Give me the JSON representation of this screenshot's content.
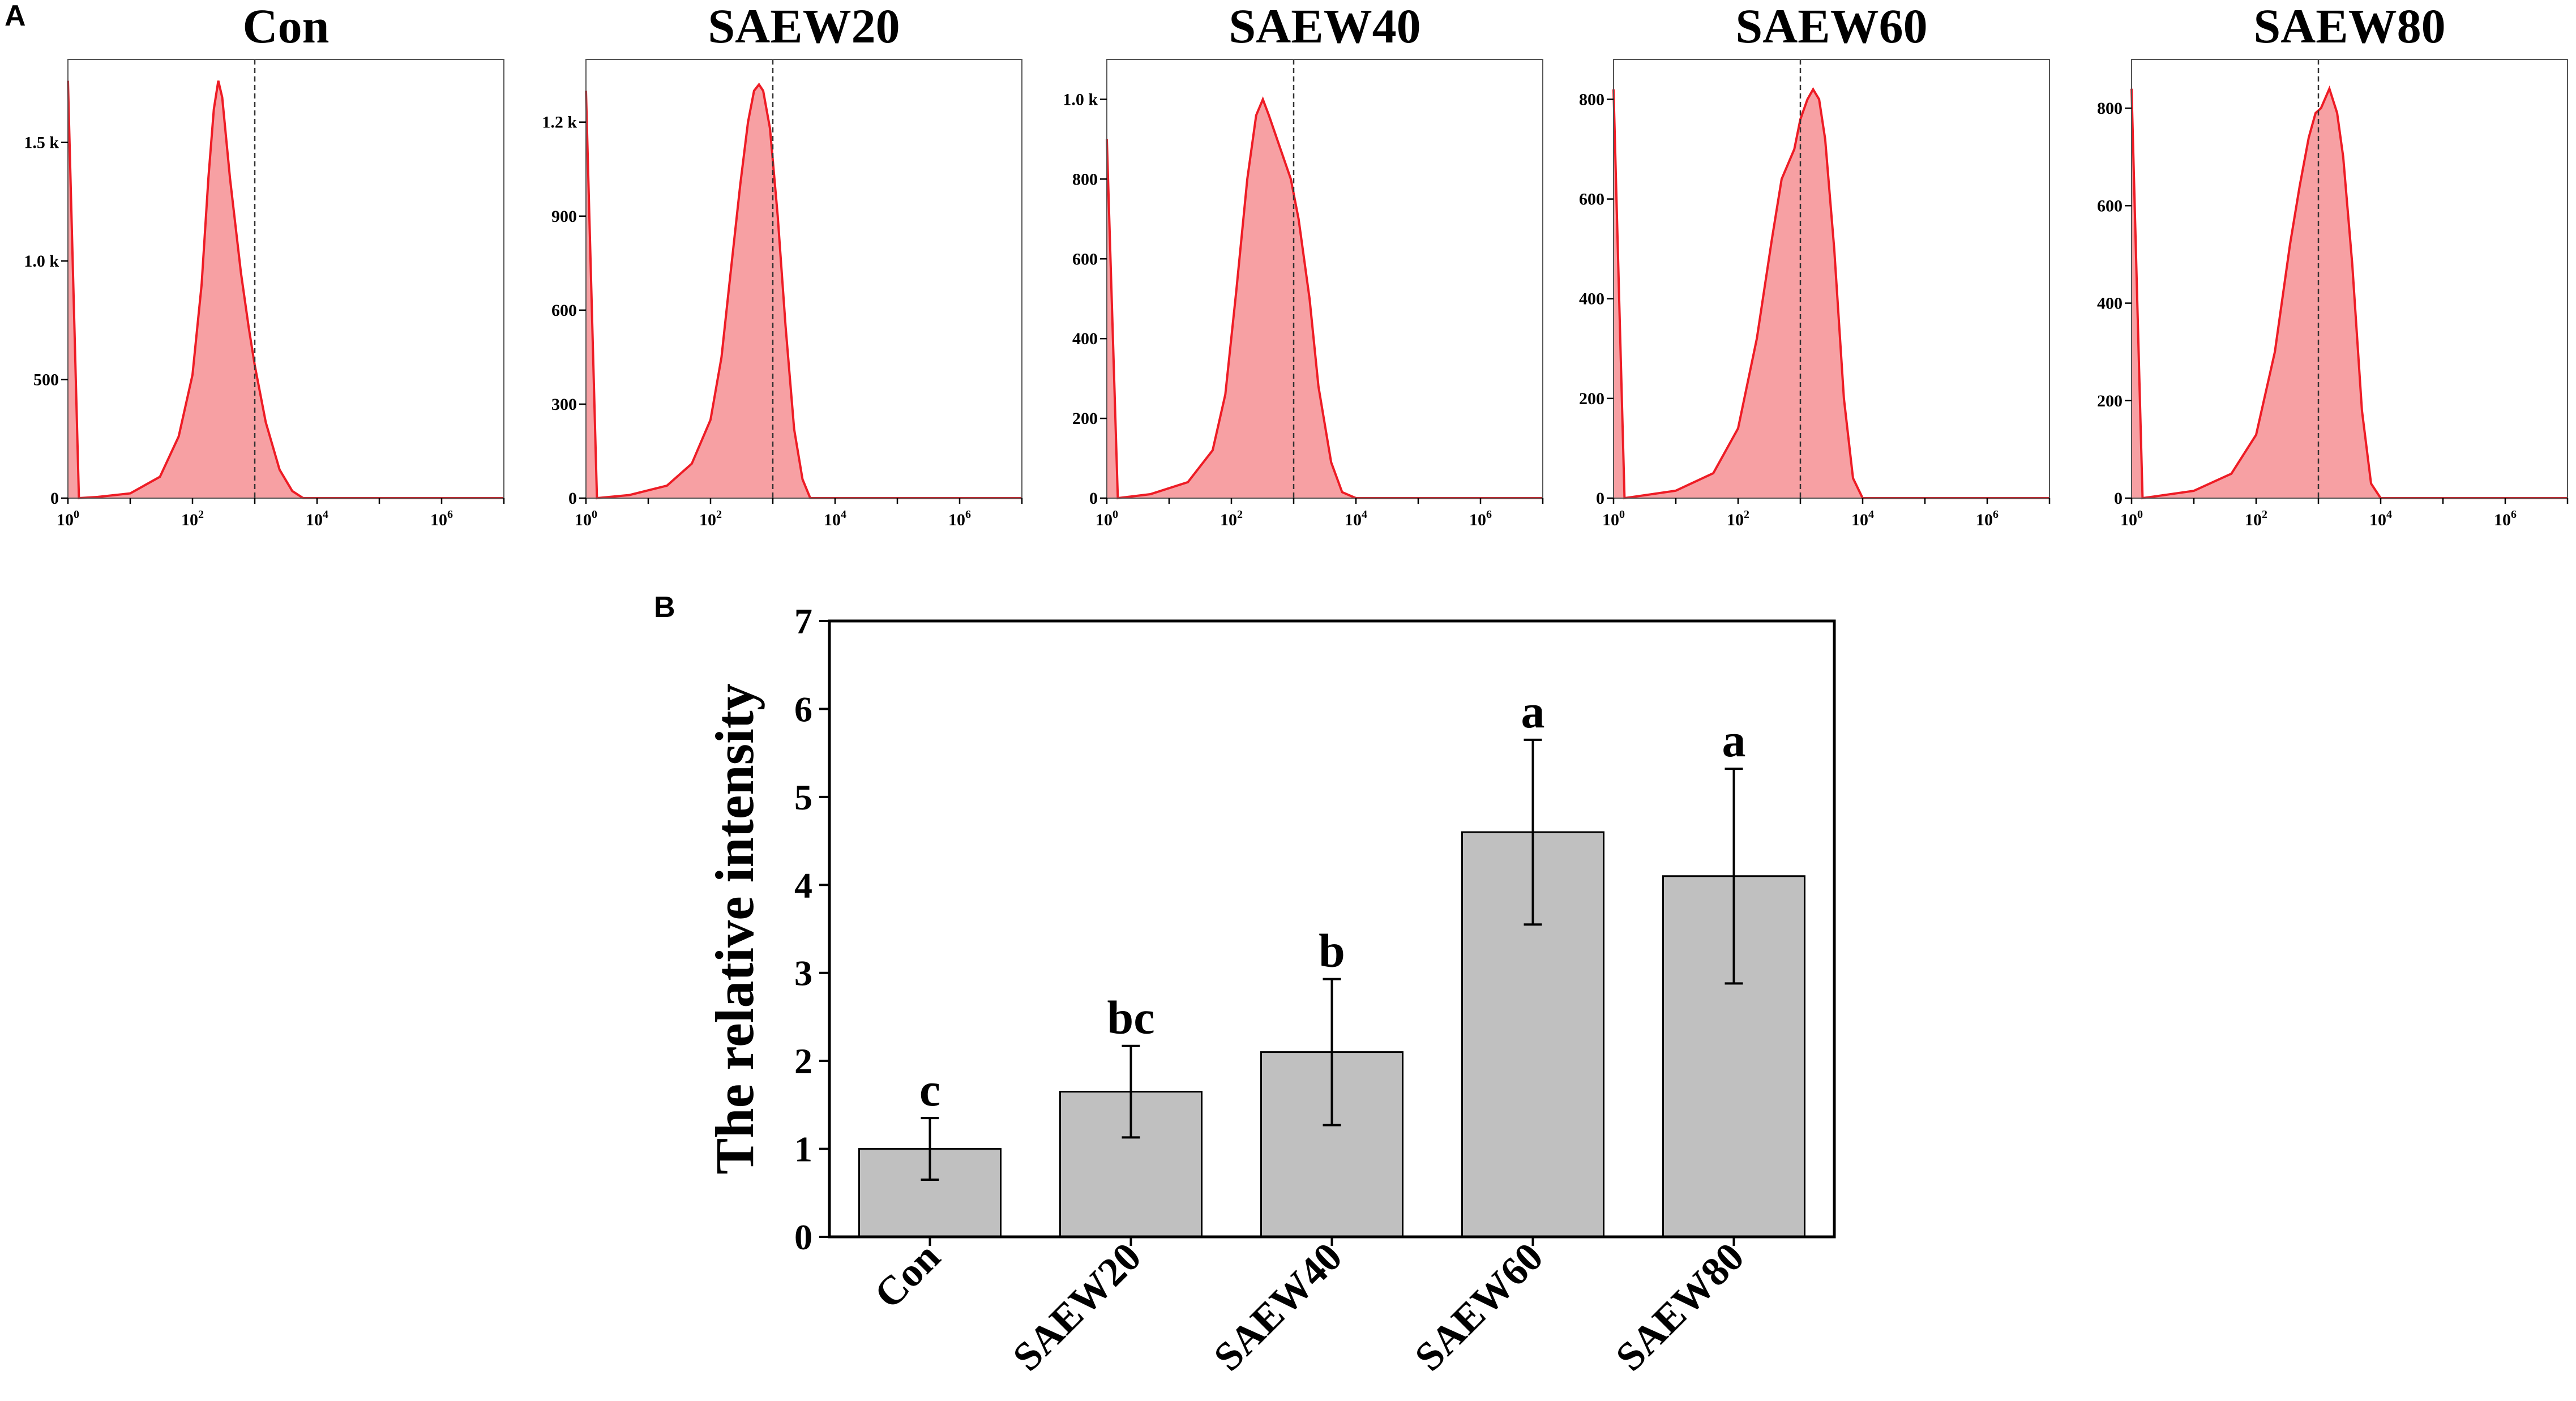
{
  "panels": {
    "a_label": "A",
    "b_label": "B"
  },
  "colors": {
    "histogram_fill": "#f7a0a3",
    "histogram_line": "#ee1c25",
    "bar_fill": "#c0c0c0",
    "axis": "#000000",
    "marker": "#333333"
  },
  "chart_data": [
    {
      "type": "area",
      "title": "Con",
      "x_scale": "log10",
      "xlim": [
        1,
        10000000
      ],
      "x_ticks": [
        {
          "base": "10",
          "exp": "0"
        },
        {
          "base": "10",
          "exp": "2"
        },
        {
          "base": "10",
          "exp": "4"
        },
        {
          "base": "10",
          "exp": "6"
        }
      ],
      "ylim": [
        0,
        1850
      ],
      "y_ticks": [
        {
          "v": 0,
          "label": "0"
        },
        {
          "v": 500,
          "label": "500"
        },
        {
          "v": 1000,
          "label": "1.0 k"
        },
        {
          "v": 1500,
          "label": "1.5 k"
        }
      ],
      "marker_x": 1000,
      "curve": [
        [
          1,
          1760
        ],
        [
          1.5,
          0
        ],
        [
          3,
          5
        ],
        [
          10,
          20
        ],
        [
          30,
          90
        ],
        [
          60,
          260
        ],
        [
          100,
          520
        ],
        [
          140,
          900
        ],
        [
          180,
          1350
        ],
        [
          220,
          1640
        ],
        [
          260,
          1760
        ],
        [
          300,
          1690
        ],
        [
          400,
          1350
        ],
        [
          600,
          950
        ],
        [
          800,
          720
        ],
        [
          1000,
          560
        ],
        [
          1500,
          320
        ],
        [
          2500,
          120
        ],
        [
          4000,
          30
        ],
        [
          6000,
          0
        ],
        [
          10000000,
          0
        ]
      ]
    },
    {
      "type": "area",
      "title": "SAEW20",
      "x_scale": "log10",
      "xlim": [
        1,
        10000000
      ],
      "x_ticks": [
        {
          "base": "10",
          "exp": "0"
        },
        {
          "base": "10",
          "exp": "2"
        },
        {
          "base": "10",
          "exp": "4"
        },
        {
          "base": "10",
          "exp": "6"
        }
      ],
      "ylim": [
        0,
        1400
      ],
      "y_ticks": [
        {
          "v": 0,
          "label": "0"
        },
        {
          "v": 300,
          "label": "300"
        },
        {
          "v": 600,
          "label": "600"
        },
        {
          "v": 900,
          "label": "900"
        },
        {
          "v": 1200,
          "label": "1.2 k"
        }
      ],
      "marker_x": 1000,
      "curve": [
        [
          1,
          1300
        ],
        [
          1.5,
          0
        ],
        [
          5,
          10
        ],
        [
          20,
          40
        ],
        [
          50,
          110
        ],
        [
          100,
          250
        ],
        [
          150,
          450
        ],
        [
          200,
          680
        ],
        [
          300,
          1000
        ],
        [
          400,
          1200
        ],
        [
          500,
          1300
        ],
        [
          600,
          1320
        ],
        [
          700,
          1300
        ],
        [
          900,
          1180
        ],
        [
          1200,
          900
        ],
        [
          1600,
          550
        ],
        [
          2200,
          220
        ],
        [
          3000,
          60
        ],
        [
          4000,
          0
        ],
        [
          10000000,
          0
        ]
      ]
    },
    {
      "type": "area",
      "title": "SAEW40",
      "x_scale": "log10",
      "xlim": [
        1,
        10000000
      ],
      "x_ticks": [
        {
          "base": "10",
          "exp": "0"
        },
        {
          "base": "10",
          "exp": "2"
        },
        {
          "base": "10",
          "exp": "4"
        },
        {
          "base": "10",
          "exp": "6"
        }
      ],
      "ylim": [
        0,
        1100
      ],
      "y_ticks": [
        {
          "v": 0,
          "label": "0"
        },
        {
          "v": 200,
          "label": "200"
        },
        {
          "v": 400,
          "label": "400"
        },
        {
          "v": 600,
          "label": "600"
        },
        {
          "v": 800,
          "label": "800"
        },
        {
          "v": 1000,
          "label": "1.0 k"
        }
      ],
      "marker_x": 1000,
      "curve": [
        [
          1,
          900
        ],
        [
          1.5,
          0
        ],
        [
          5,
          10
        ],
        [
          20,
          40
        ],
        [
          50,
          120
        ],
        [
          80,
          260
        ],
        [
          120,
          520
        ],
        [
          180,
          800
        ],
        [
          250,
          960
        ],
        [
          320,
          1000
        ],
        [
          400,
          960
        ],
        [
          600,
          880
        ],
        [
          900,
          800
        ],
        [
          1200,
          700
        ],
        [
          1800,
          500
        ],
        [
          2500,
          280
        ],
        [
          4000,
          90
        ],
        [
          6000,
          15
        ],
        [
          10000,
          0
        ],
        [
          10000000,
          0
        ]
      ]
    },
    {
      "type": "area",
      "title": "SAEW60",
      "x_scale": "log10",
      "xlim": [
        1,
        10000000
      ],
      "x_ticks": [
        {
          "base": "10",
          "exp": "0"
        },
        {
          "base": "10",
          "exp": "2"
        },
        {
          "base": "10",
          "exp": "4"
        },
        {
          "base": "10",
          "exp": "6"
        }
      ],
      "ylim": [
        0,
        880
      ],
      "y_ticks": [
        {
          "v": 0,
          "label": "0"
        },
        {
          "v": 200,
          "label": "200"
        },
        {
          "v": 400,
          "label": "400"
        },
        {
          "v": 600,
          "label": "600"
        },
        {
          "v": 800,
          "label": "800"
        }
      ],
      "marker_x": 1000,
      "curve": [
        [
          1,
          820
        ],
        [
          1.5,
          0
        ],
        [
          10,
          15
        ],
        [
          40,
          50
        ],
        [
          100,
          140
        ],
        [
          200,
          320
        ],
        [
          350,
          520
        ],
        [
          500,
          640
        ],
        [
          800,
          700
        ],
        [
          1000,
          760
        ],
        [
          1300,
          800
        ],
        [
          1600,
          820
        ],
        [
          2000,
          800
        ],
        [
          2500,
          720
        ],
        [
          3500,
          500
        ],
        [
          5000,
          200
        ],
        [
          7000,
          40
        ],
        [
          10000,
          0
        ],
        [
          10000000,
          0
        ]
      ]
    },
    {
      "type": "area",
      "title": "SAEW80",
      "x_scale": "log10",
      "xlim": [
        1,
        10000000
      ],
      "x_ticks": [
        {
          "base": "10",
          "exp": "0"
        },
        {
          "base": "10",
          "exp": "2"
        },
        {
          "base": "10",
          "exp": "4"
        },
        {
          "base": "10",
          "exp": "6"
        }
      ],
      "ylim": [
        0,
        900
      ],
      "y_ticks": [
        {
          "v": 0,
          "label": "0"
        },
        {
          "v": 200,
          "label": "200"
        },
        {
          "v": 400,
          "label": "400"
        },
        {
          "v": 600,
          "label": "600"
        },
        {
          "v": 800,
          "label": "800"
        }
      ],
      "marker_x": 1000,
      "curve": [
        [
          1,
          840
        ],
        [
          1.5,
          0
        ],
        [
          10,
          15
        ],
        [
          40,
          50
        ],
        [
          100,
          130
        ],
        [
          200,
          300
        ],
        [
          350,
          520
        ],
        [
          500,
          640
        ],
        [
          700,
          740
        ],
        [
          900,
          790
        ],
        [
          1100,
          800
        ],
        [
          1500,
          840
        ],
        [
          2000,
          790
        ],
        [
          2500,
          700
        ],
        [
          3500,
          480
        ],
        [
          5000,
          180
        ],
        [
          7000,
          30
        ],
        [
          10000,
          0
        ],
        [
          10000000,
          0
        ]
      ]
    },
    {
      "type": "bar",
      "title": "",
      "xlabel": "",
      "ylabel": "The relative intensity",
      "categories": [
        "Con",
        "SAEW20",
        "SAEW40",
        "SAEW60",
        "SAEW80"
      ],
      "values": [
        1.0,
        1.65,
        2.1,
        4.6,
        4.1
      ],
      "errors": [
        0.35,
        0.52,
        0.83,
        1.05,
        1.22
      ],
      "significance": [
        "c",
        "bc",
        "b",
        "a",
        "a"
      ],
      "ylim": [
        0,
        7
      ],
      "y_ticks": [
        "0",
        "1",
        "2",
        "3",
        "4",
        "5",
        "6",
        "7"
      ]
    }
  ]
}
